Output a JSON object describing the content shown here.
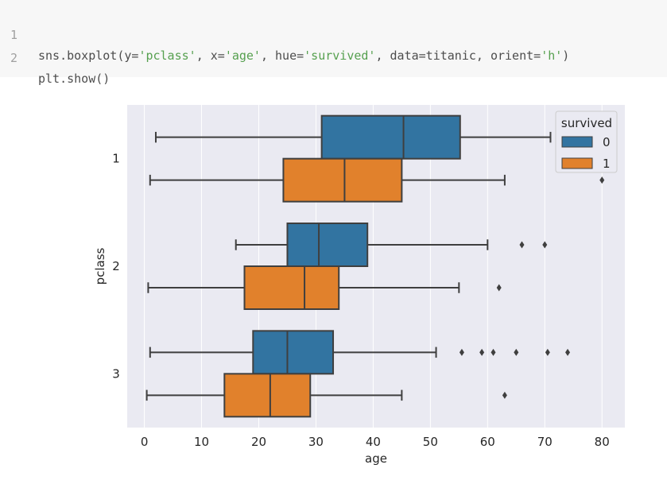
{
  "code": {
    "lines": [
      {
        "num": "1",
        "segments": [
          {
            "text": "sns.boxplot(y=",
            "cls": ""
          },
          {
            "text": "'pclass'",
            "cls": "str"
          },
          {
            "text": ", x=",
            "cls": ""
          },
          {
            "text": "'age'",
            "cls": "str"
          },
          {
            "text": ", hue=",
            "cls": ""
          },
          {
            "text": "'survived'",
            "cls": "str"
          },
          {
            "text": ", data=titanic, orient=",
            "cls": ""
          },
          {
            "text": "'h'",
            "cls": "str"
          },
          {
            "text": ")",
            "cls": ""
          }
        ]
      },
      {
        "num": "2",
        "segments": [
          {
            "text": "plt.show()",
            "cls": ""
          }
        ]
      }
    ]
  },
  "chart_data": {
    "type": "boxplot",
    "orient": "h",
    "title": "",
    "xlabel": "age",
    "ylabel": "pclass",
    "xlim": [
      -3,
      84
    ],
    "xticks": [
      0,
      10,
      20,
      30,
      40,
      50,
      60,
      70,
      80
    ],
    "categories": [
      "1",
      "2",
      "3"
    ],
    "legend": {
      "title": "survived",
      "position": "top-right",
      "entries": [
        "0",
        "1"
      ]
    },
    "colors": {
      "0": "#3274a1",
      "1": "#e1812c",
      "background": "#eaeaf2",
      "grid": "#ffffff",
      "line": "#3f3f3f"
    },
    "series": [
      {
        "name": "0",
        "boxes": [
          {
            "category": "1",
            "whisker_low": 2,
            "q1": 31,
            "median": 45.3,
            "q3": 55.2,
            "whisker_high": 71,
            "outliers": []
          },
          {
            "category": "2",
            "whisker_low": 16,
            "q1": 25,
            "median": 30.5,
            "q3": 39,
            "whisker_high": 60,
            "outliers": [
              66,
              70
            ]
          },
          {
            "category": "3",
            "whisker_low": 1,
            "q1": 19,
            "median": 25,
            "q3": 33,
            "whisker_high": 51,
            "outliers": [
              55.5,
              59,
              61,
              65,
              70.5,
              74
            ]
          }
        ]
      },
      {
        "name": "1",
        "boxes": [
          {
            "category": "1",
            "whisker_low": 1,
            "q1": 24.3,
            "median": 35,
            "q3": 45,
            "whisker_high": 63,
            "outliers": [
              80
            ]
          },
          {
            "category": "2",
            "whisker_low": 0.67,
            "q1": 17.5,
            "median": 28,
            "q3": 34,
            "whisker_high": 55,
            "outliers": [
              62
            ]
          },
          {
            "category": "3",
            "whisker_low": 0.42,
            "q1": 14,
            "median": 22,
            "q3": 29,
            "whisker_high": 45,
            "outliers": [
              63
            ]
          }
        ]
      }
    ]
  }
}
